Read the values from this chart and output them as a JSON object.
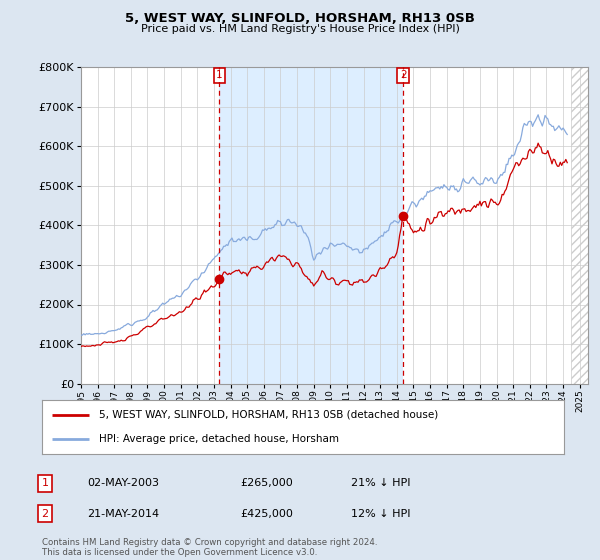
{
  "title": "5, WEST WAY, SLINFOLD, HORSHAM, RH13 0SB",
  "subtitle": "Price paid vs. HM Land Registry's House Price Index (HPI)",
  "legend_line1": "5, WEST WAY, SLINFOLD, HORSHAM, RH13 0SB (detached house)",
  "legend_line2": "HPI: Average price, detached house, Horsham",
  "transaction1_label": "1",
  "transaction1_date": "02-MAY-2003",
  "transaction1_price": "£265,000",
  "transaction1_hpi": "21% ↓ HPI",
  "transaction1_year": 2003.33,
  "transaction2_label": "2",
  "transaction2_date": "21-MAY-2014",
  "transaction2_price": "£425,000",
  "transaction2_hpi": "12% ↓ HPI",
  "transaction2_year": 2014.38,
  "footer": "Contains HM Land Registry data © Crown copyright and database right 2024.\nThis data is licensed under the Open Government Licence v3.0.",
  "ylim": [
    0,
    800000
  ],
  "xlim_min": 1995.0,
  "xlim_max": 2025.5,
  "data_end": 2024.5,
  "price_color": "#cc0000",
  "hpi_color": "#88aadd",
  "background_color": "#dce6f1",
  "plot_bg_color": "#ffffff",
  "shade_color": "#ddeeff",
  "grid_color": "#cccccc",
  "hatch_color": "#cccccc"
}
